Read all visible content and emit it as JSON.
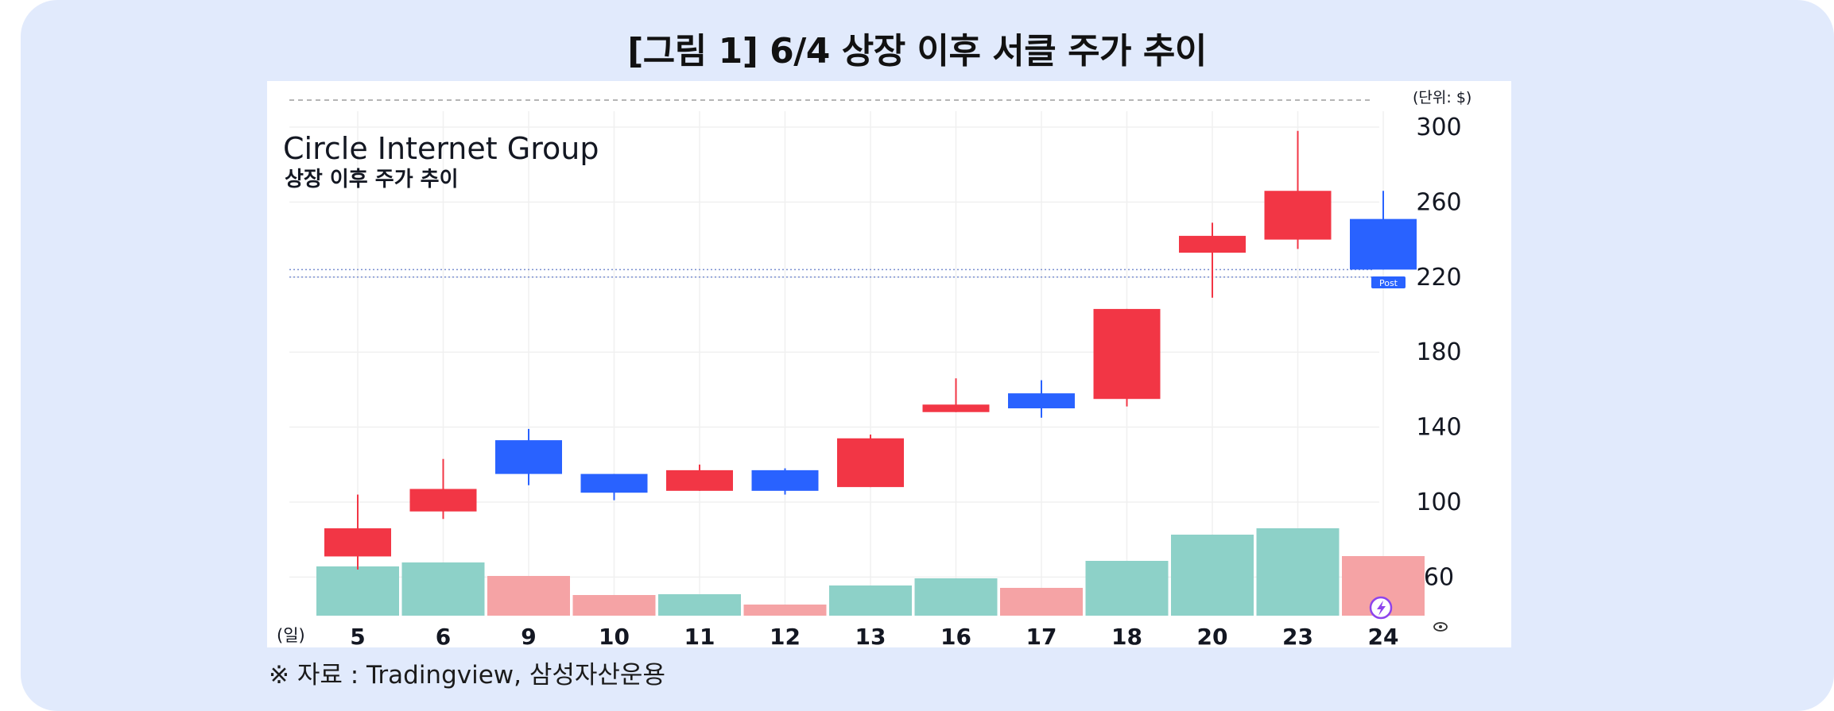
{
  "figure": {
    "title": "[그림 1] 6/4 상장 이후 서클 주가 추이",
    "source": "※ 자료 : Tradingview, 삼성자산운용"
  },
  "chart_data": {
    "type": "candlestick",
    "title": "Circle Internet Group",
    "subtitle": "상장 이후 주가 추이",
    "unit_label": "(단위: $)",
    "x_axis_label": "(일)",
    "categories": [
      "5",
      "6",
      "9",
      "10",
      "11",
      "12",
      "13",
      "16",
      "17",
      "18",
      "20",
      "23",
      "24"
    ],
    "y_ticks": [
      300,
      260,
      220,
      180,
      140,
      100,
      60
    ],
    "ylim": [
      40,
      310
    ],
    "candles": [
      {
        "day": "5",
        "open": 71,
        "close": 86,
        "high": 104,
        "low": 64,
        "direction": "up"
      },
      {
        "day": "6",
        "open": 95,
        "close": 107,
        "high": 123,
        "low": 91,
        "direction": "up"
      },
      {
        "day": "9",
        "open": 133,
        "close": 115,
        "high": 139,
        "low": 109,
        "direction": "down"
      },
      {
        "day": "10",
        "open": 115,
        "close": 105,
        "high": 115,
        "low": 101,
        "direction": "down"
      },
      {
        "day": "11",
        "open": 106,
        "close": 117,
        "high": 120,
        "low": 106,
        "direction": "up"
      },
      {
        "day": "12",
        "open": 117,
        "close": 106,
        "high": 118,
        "low": 104,
        "direction": "down"
      },
      {
        "day": "13",
        "open": 108,
        "close": 134,
        "high": 136,
        "low": 108,
        "direction": "up"
      },
      {
        "day": "16",
        "open": 148,
        "close": 152,
        "high": 166,
        "low": 148,
        "direction": "up"
      },
      {
        "day": "17",
        "open": 158,
        "close": 150,
        "high": 165,
        "low": 145,
        "direction": "down"
      },
      {
        "day": "18",
        "open": 155,
        "close": 203,
        "high": 203,
        "low": 151,
        "direction": "up"
      },
      {
        "day": "20",
        "open": 233,
        "close": 242,
        "high": 249,
        "low": 209,
        "direction": "up"
      },
      {
        "day": "23",
        "open": 240,
        "close": 266,
        "high": 298,
        "low": 235,
        "direction": "up"
      },
      {
        "day": "24",
        "open": 251,
        "close": 224,
        "high": 266,
        "low": 224,
        "direction": "down"
      }
    ],
    "volume_relative": [
      {
        "day": "5",
        "value": 0.62,
        "direction": "up"
      },
      {
        "day": "6",
        "value": 0.67,
        "direction": "up"
      },
      {
        "day": "9",
        "value": 0.5,
        "direction": "down"
      },
      {
        "day": "10",
        "value": 0.26,
        "direction": "down"
      },
      {
        "day": "11",
        "value": 0.27,
        "direction": "up"
      },
      {
        "day": "12",
        "value": 0.14,
        "direction": "down"
      },
      {
        "day": "13",
        "value": 0.38,
        "direction": "up"
      },
      {
        "day": "16",
        "value": 0.47,
        "direction": "up"
      },
      {
        "day": "17",
        "value": 0.35,
        "direction": "down"
      },
      {
        "day": "18",
        "value": 0.69,
        "direction": "up"
      },
      {
        "day": "20",
        "value": 1.02,
        "direction": "up"
      },
      {
        "day": "23",
        "value": 1.1,
        "direction": "up"
      },
      {
        "day": "24",
        "value": 0.75,
        "direction": "down"
      }
    ],
    "post_price_label": "Post",
    "reference_lines": [
      224,
      220
    ],
    "grid": true,
    "colors": {
      "up": "#f23645",
      "down": "#2962ff",
      "volume_up": "#8dd1c8",
      "volume_down": "#f5a3a5",
      "card_background": "#e1eafc",
      "plot_background": "#ffffff",
      "reference_line": "#7a8fd0"
    }
  }
}
